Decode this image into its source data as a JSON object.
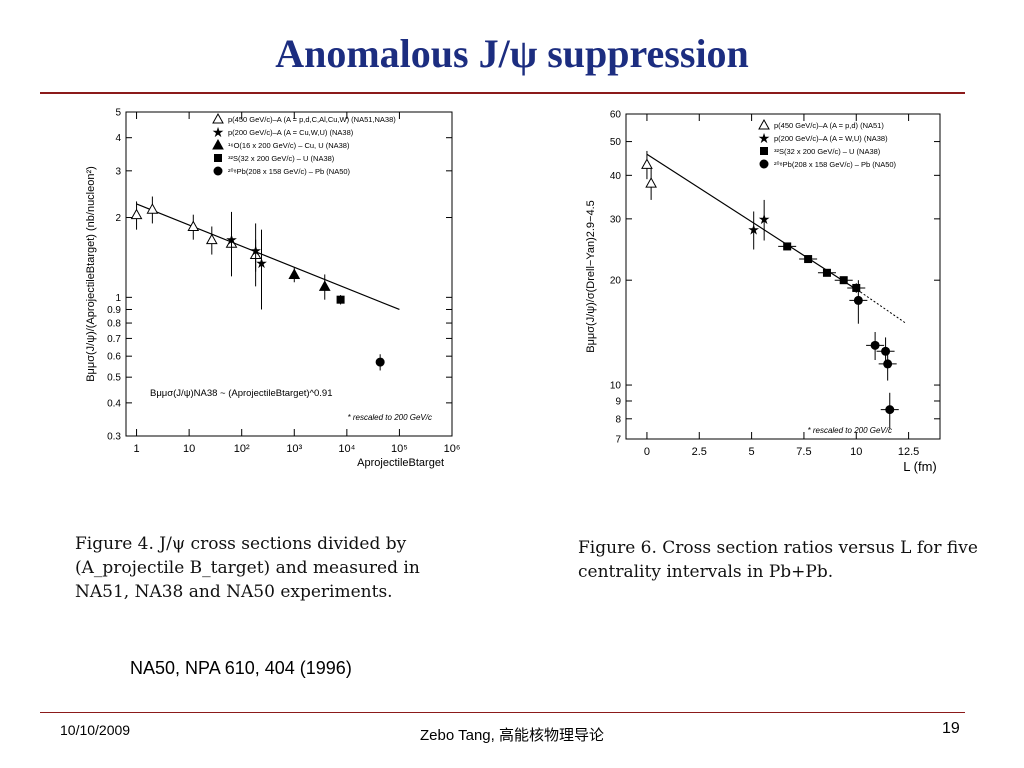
{
  "slide": {
    "title": "Anomalous J/ψ suppression",
    "reference": "NA50, NPA 610, 404 (1996)",
    "footer_date": "10/10/2009",
    "footer_center": "Zebo Tang, 高能核物理导论",
    "page_number": "19",
    "colors": {
      "title": "#1c2d80",
      "rule": "#8b1a1a"
    }
  },
  "captions": {
    "left": "Figure 4.   J/ψ cross sections divided by (A_projectile B_target) and measured in NA51, NA38 and NA50 experiments.",
    "right": "Figure 6.  Cross section ratios versus L for five centrality intervals in Pb+Pb."
  },
  "chart_data": [
    {
      "type": "scatter",
      "scale": "log-log",
      "xlabel": "AprojectileBtarget",
      "ylabel": "Bμμσ(J/ψ)/(AprojectileBtarget) (nb/nucleon²)",
      "xlim": [
        0.63,
        1000000
      ],
      "ylim": [
        0.3,
        5
      ],
      "xticks": [
        "1",
        "10",
        "10²",
        "10³",
        "10⁴",
        "10⁵",
        "10⁶"
      ],
      "yticks": [
        "0.3",
        "0.4",
        "0.5",
        "0.6",
        "0.7",
        "0.8",
        "0.9",
        "1",
        "2",
        "3",
        "4",
        "5"
      ],
      "legend": [
        "p(450 GeV/c)–A (A = p,d,C,Al,Cu,W) (NA51,NA38)",
        "p(200 GeV/c)–A (A = Cu,W,U) (NA38)",
        "¹⁶O(16 x 200 GeV/c) – Cu, U (NA38)",
        "³²S(32 x 200 GeV/c) – U (NA38)",
        "²⁰⁸Pb(208 x 158 GeV/c) – Pb (NA50)"
      ],
      "legend_position": "top",
      "fit_label": "Bμμσ(J/ψ)NA38 ~ (AprojectileBtarget)^0.91",
      "note": "* rescaled to 200 GeV/c",
      "series": [
        {
          "name": "p(450 GeV/c)–A (A = p,d,C,Al,Cu,W) (NA51,NA38)",
          "marker": "triangle-open",
          "x": [
            1,
            2,
            12,
            27,
            64,
            184
          ],
          "y": [
            2.05,
            2.15,
            1.85,
            1.65,
            1.6,
            1.45
          ],
          "err": [
            0.25,
            0.25,
            0.2,
            0.2,
            0.2,
            0.2
          ]
        },
        {
          "name": "p(200 GeV/c)–A (A = Cu,W,U) (NA38)",
          "marker": "star",
          "x": [
            64,
            184,
            238
          ],
          "y": [
            1.65,
            1.5,
            1.35
          ],
          "err": [
            0.45,
            0.4,
            0.45
          ]
        },
        {
          "name": "¹⁶O(16 x 200 GeV/c) – Cu, U (NA38)",
          "marker": "triangle-filled",
          "x": [
            1000,
            3800
          ],
          "y": [
            1.22,
            1.1
          ],
          "err": [
            0.08,
            0.12
          ]
        },
        {
          "name": "³²S(32 x 200 GeV/c) – U (NA38)",
          "marker": "square-filled",
          "x": [
            7600
          ],
          "y": [
            0.98
          ],
          "err": [
            0.04
          ]
        },
        {
          "name": "²⁰⁸Pb(208 x 158 GeV/c) – Pb (NA50)",
          "marker": "circle-filled",
          "x": [
            43000
          ],
          "y": [
            0.57
          ],
          "err": [
            0.04
          ]
        }
      ],
      "fit_line": {
        "x": [
          1,
          100000
        ],
        "y": [
          2.25,
          0.9
        ]
      }
    },
    {
      "type": "scatter",
      "scale": "log-y",
      "xlabel": "L (fm)",
      "ylabel": "Bμμσ(J/ψ)/σ(Drell−Yan)2.9−4.5",
      "xlim": [
        -1,
        14
      ],
      "ylim": [
        7,
        60
      ],
      "xticks": [
        "0",
        "2.5",
        "5",
        "7.5",
        "10",
        "12.5"
      ],
      "yticks": [
        "7",
        "8",
        "9",
        "10",
        "20",
        "30",
        "40",
        "50",
        "60"
      ],
      "legend": [
        "p(450 GeV/c)–A (A = p,d) (NA51)",
        "p(200 GeV/c)–A (A = W,U) (NA38)",
        "³²S(32 x 200 GeV/c) – U (NA38)",
        "²⁰⁸Pb(208 x 158 GeV/c) – Pb (NA50)"
      ],
      "legend_position": "top",
      "note": "* rescaled to 200 GeV/c",
      "series": [
        {
          "name": "p(450 GeV/c)–A (A = p,d) (NA51)",
          "marker": "triangle-open",
          "x": [
            0,
            0.2
          ],
          "y": [
            43,
            38
          ],
          "err": [
            4,
            4
          ]
        },
        {
          "name": "p(200 GeV/c)–A (A = W,U) (NA38)",
          "marker": "star",
          "x": [
            5.1,
            5.6
          ],
          "y": [
            28,
            30
          ],
          "err": [
            3.5,
            4
          ]
        },
        {
          "name": "³²S(32 x 200 GeV/c) – U (NA38)",
          "marker": "square-filled",
          "x": [
            6.7,
            7.7,
            8.6,
            9.4,
            10
          ],
          "y": [
            25,
            23,
            21,
            20,
            19
          ],
          "err": [
            0.5,
            0.5,
            0.5,
            0.5,
            0.6
          ]
        },
        {
          "name": "²⁰⁸Pb(208 x 158 GeV/c) – Pb (NA50)",
          "marker": "circle-filled",
          "x": [
            10.1,
            10.9,
            11.4,
            11.5,
            11.6
          ],
          "y": [
            17.5,
            13,
            12.5,
            11.5,
            8.5
          ],
          "err": [
            2.5,
            1.2,
            1.2,
            1.2,
            1
          ]
        }
      ],
      "fit_line": {
        "x": [
          0,
          10.2
        ],
        "y": [
          46,
          18.5
        ]
      },
      "extrapolation": {
        "x": [
          10.2,
          12.4
        ],
        "y": [
          18.5,
          15
        ]
      }
    }
  ]
}
